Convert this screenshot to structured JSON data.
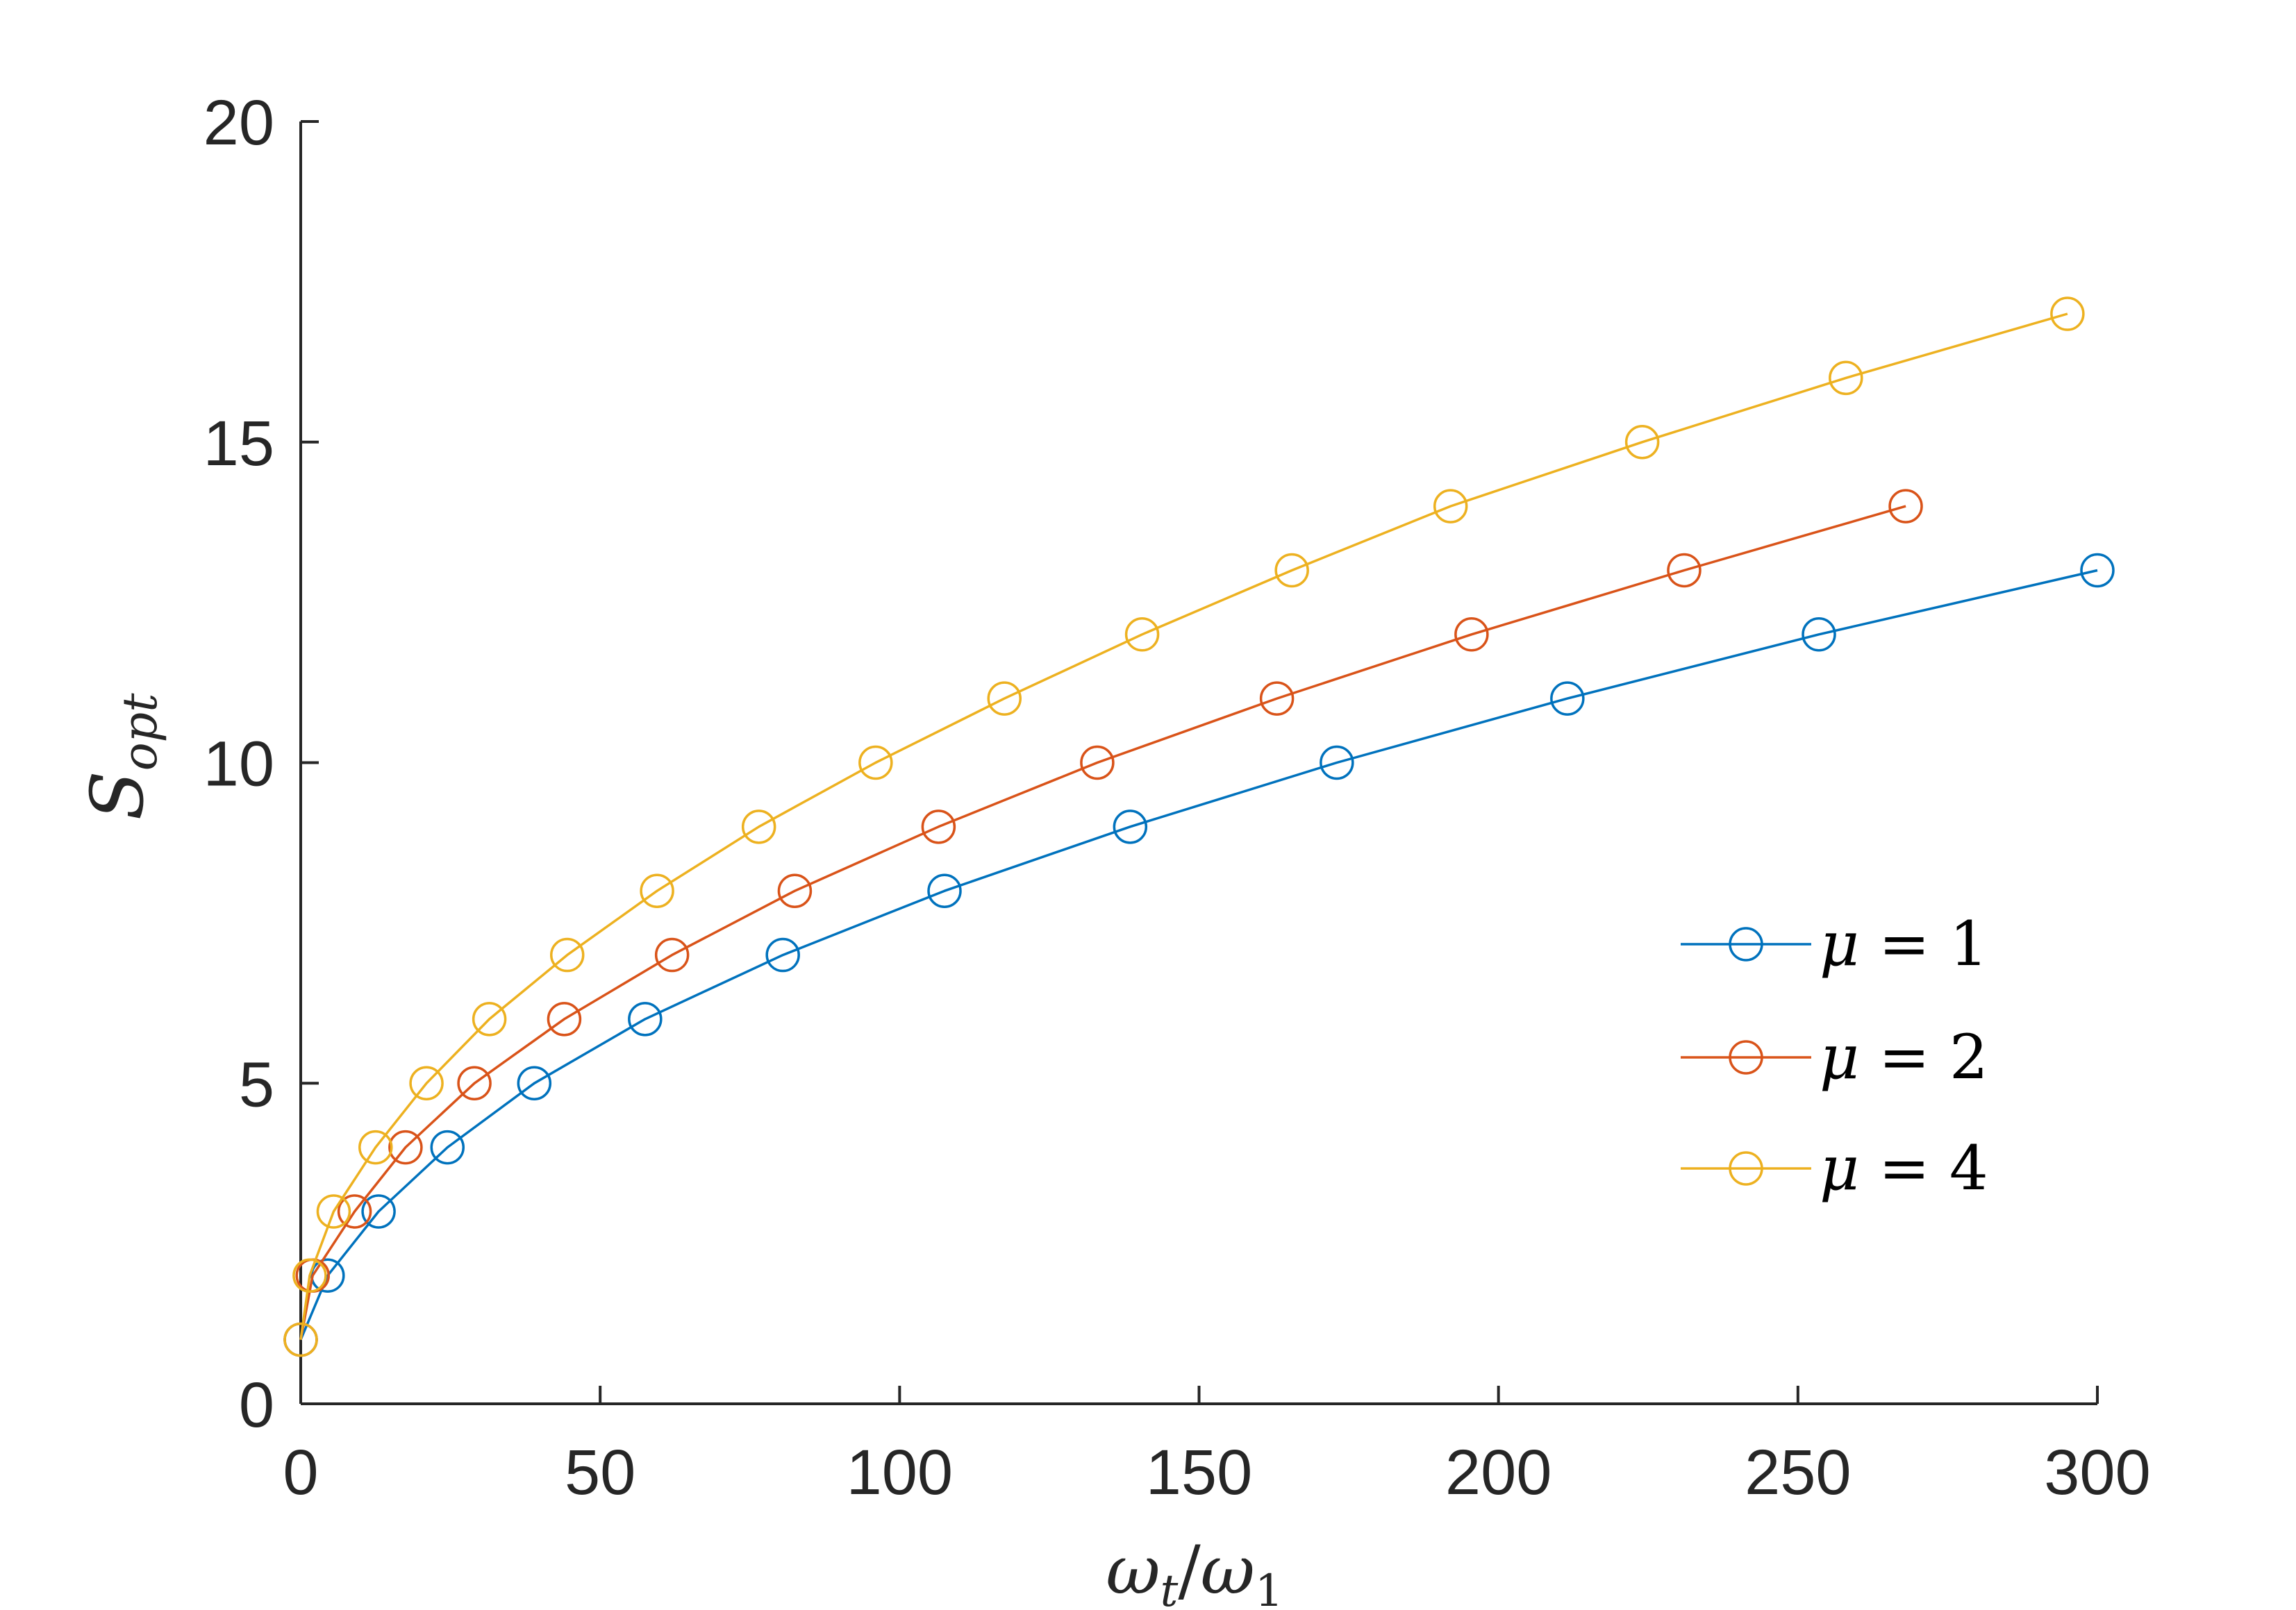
{
  "chart_data": {
    "type": "line",
    "title": "",
    "xlabel": "ωt/ω1",
    "ylabel": "Sopt",
    "xlim": [
      0,
      300
    ],
    "ylim": [
      0,
      20
    ],
    "xticks": [
      "0",
      "50",
      "100",
      "150",
      "200",
      "250",
      "300"
    ],
    "yticks": [
      "0",
      "5",
      "10",
      "15",
      "20"
    ],
    "grid": false,
    "legend_position": "right",
    "marker": "open-circle",
    "series": [
      {
        "name": "μ = 1",
        "color": "#0072BD",
        "x": [
          0,
          4.5,
          13,
          24.5,
          39,
          57.5,
          80.5,
          107.5,
          138.5,
          173,
          211.5,
          253.5,
          300
        ],
        "y": [
          1,
          2,
          3,
          4,
          5,
          6,
          7,
          8,
          9,
          10,
          11,
          12,
          13
        ]
      },
      {
        "name": "μ = 2",
        "color": "#D95319",
        "x": [
          0,
          2,
          9,
          17.5,
          29,
          44,
          62,
          82.5,
          106.5,
          133,
          163,
          195.5,
          231,
          268
        ],
        "y": [
          1,
          2,
          3,
          4,
          5,
          6,
          7,
          8,
          9,
          10,
          11,
          12,
          13,
          14
        ]
      },
      {
        "name": "μ = 4",
        "color": "#EDB120",
        "x": [
          0,
          1.5,
          5.5,
          12.5,
          21,
          31.5,
          44.5,
          59.5,
          76.5,
          96,
          117.5,
          140.5,
          165.5,
          192,
          224,
          258,
          295
        ],
        "y": [
          1,
          2,
          3,
          4,
          5,
          6,
          7,
          8,
          9,
          10,
          11,
          12,
          13,
          14,
          15,
          16,
          17
        ]
      }
    ]
  },
  "legend_values": [
    "1",
    "2",
    "4"
  ],
  "axis_label_parts": {
    "x_omega": "ω",
    "x_sub_t": "t",
    "x_slash": "/",
    "x_sub_1": "1",
    "y_main": "S",
    "y_sub": "opt"
  }
}
